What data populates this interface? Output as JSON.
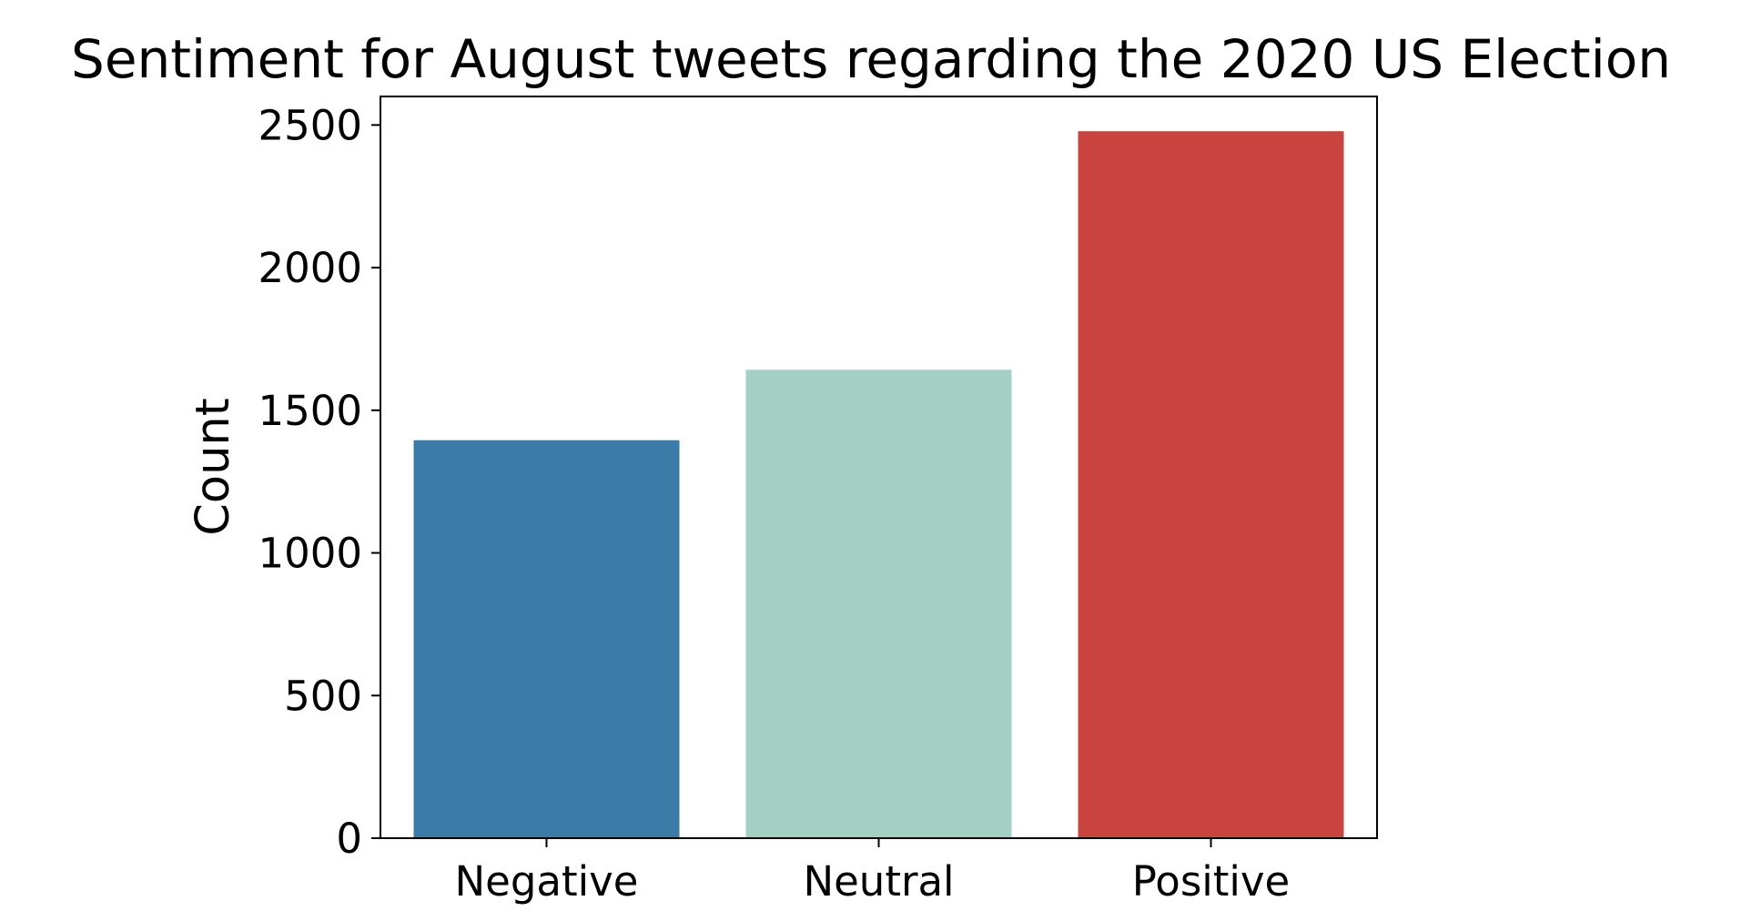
{
  "chart_data": {
    "type": "bar",
    "title": "Sentiment for August tweets regarding the 2020 US Election",
    "xlabel": "",
    "ylabel": "Count",
    "categories": [
      "Negative",
      "Neutral",
      "Positive"
    ],
    "values": [
      1395,
      1642,
      2478
    ],
    "colors": [
      "#3b7ba7",
      "#a3cfc4",
      "#c9443f"
    ],
    "ylim": [
      0,
      2600
    ],
    "yticks": [
      0,
      500,
      1000,
      1500,
      2000,
      2500
    ],
    "grid": false,
    "legend": "none"
  }
}
